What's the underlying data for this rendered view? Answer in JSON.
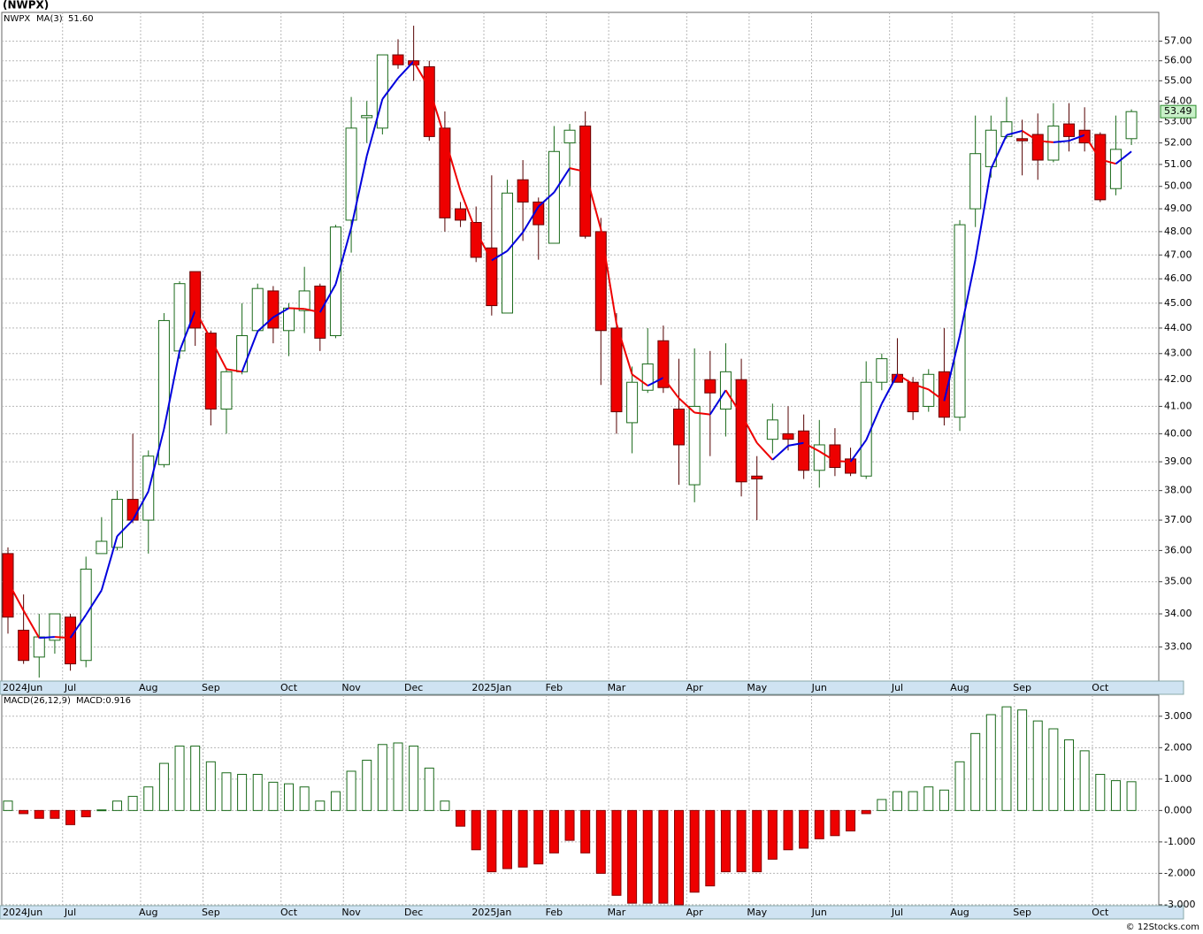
{
  "chart_data": [
    {
      "type": "candlestick",
      "title": "(NWPX)",
      "symbol": "NWPX",
      "symbol_color": "#1a7a1a",
      "categories": [
        "2024Jun",
        null,
        null,
        null,
        "Jul",
        null,
        null,
        null,
        null,
        "Aug",
        null,
        null,
        null,
        "Sep",
        null,
        null,
        null,
        null,
        "Oct",
        null,
        null,
        null,
        "Nov",
        null,
        null,
        null,
        "Dec",
        null,
        null,
        null,
        null,
        "2025Jan",
        null,
        null,
        null,
        "Feb",
        null,
        null,
        null,
        "Mar",
        null,
        null,
        null,
        null,
        "Apr",
        null,
        null,
        null,
        "May",
        null,
        null,
        null,
        "Jun",
        null,
        null,
        null,
        null,
        "Jul",
        null,
        null,
        null,
        "Aug",
        null,
        null,
        null,
        "Sep",
        null,
        null,
        null,
        null,
        "Oct",
        null,
        null
      ],
      "open": [
        35.9,
        33.5,
        32.7,
        33.2,
        33.9,
        32.6,
        35.9,
        36.1,
        37.7,
        37.0,
        38.9,
        43.1,
        46.3,
        43.8,
        40.9,
        42.3,
        43.9,
        45.5,
        43.9,
        44.7,
        45.7,
        43.7,
        48.5,
        53.2,
        52.7,
        56.3,
        56.0,
        55.7,
        52.7,
        49.0,
        48.4,
        47.3,
        44.6,
        50.3,
        49.3,
        47.5,
        52.0,
        52.8,
        48.0,
        44.0,
        40.4,
        41.6,
        43.5,
        40.9,
        38.2,
        42.0,
        40.9,
        42.0,
        38.5,
        39.8,
        40.0,
        40.1,
        38.7,
        39.6,
        39.1,
        38.5,
        41.9,
        42.2,
        41.9,
        41.0,
        42.3,
        40.6,
        49.0,
        50.9,
        52.3,
        52.2,
        52.4,
        51.2,
        52.9,
        52.6,
        52.4,
        49.9,
        52.2
      ],
      "high": [
        36.1,
        34.6,
        34.0,
        34.0,
        34.0,
        35.8,
        37.1,
        38.0,
        40.0,
        39.4,
        44.6,
        45.9,
        46.3,
        43.9,
        42.4,
        45.0,
        45.8,
        45.7,
        45.0,
        46.5,
        45.8,
        48.3,
        54.2,
        54.0,
        56.3,
        57.1,
        57.8,
        56.0,
        53.5,
        49.3,
        49.1,
        50.5,
        50.3,
        51.2,
        49.5,
        52.8,
        52.9,
        53.5,
        48.6,
        44.6,
        42.5,
        44.0,
        44.1,
        42.8,
        43.2,
        43.1,
        43.4,
        42.8,
        39.2,
        41.1,
        41.0,
        40.7,
        40.5,
        40.2,
        39.5,
        42.7,
        43.0,
        43.6,
        42.1,
        42.4,
        44.0,
        48.5,
        53.3,
        53.3,
        54.2,
        53.1,
        53.4,
        53.9,
        53.9,
        53.7,
        52.5,
        53.3,
        53.6
      ],
      "low": [
        33.4,
        32.5,
        32.1,
        32.8,
        32.3,
        32.4,
        35.9,
        36.0,
        36.9,
        35.9,
        38.8,
        42.8,
        43.3,
        40.3,
        40.0,
        42.2,
        43.8,
        43.4,
        42.9,
        43.8,
        43.1,
        43.6,
        47.1,
        52.0,
        52.4,
        55.6,
        55.0,
        52.1,
        48.0,
        48.2,
        46.7,
        44.5,
        44.6,
        47.6,
        46.8,
        47.5,
        50.0,
        47.7,
        41.8,
        40.0,
        39.3,
        41.5,
        41.5,
        38.2,
        37.6,
        39.2,
        39.9,
        37.8,
        37.0,
        39.3,
        39.4,
        38.4,
        38.1,
        38.5,
        38.5,
        38.4,
        41.6,
        41.9,
        40.5,
        40.8,
        40.3,
        40.1,
        48.2,
        50.4,
        52.2,
        50.5,
        50.3,
        51.1,
        51.6,
        51.6,
        49.3,
        49.6,
        51.9
      ],
      "close": [
        33.9,
        32.6,
        33.3,
        34.0,
        32.5,
        35.4,
        36.3,
        37.7,
        37.0,
        39.2,
        44.3,
        45.8,
        44.0,
        40.9,
        42.3,
        43.7,
        45.6,
        44.0,
        44.8,
        45.5,
        43.6,
        48.2,
        52.7,
        53.3,
        56.3,
        55.8,
        55.8,
        52.3,
        48.6,
        48.5,
        46.9,
        44.9,
        49.7,
        49.3,
        48.3,
        51.6,
        52.6,
        47.8,
        43.9,
        40.8,
        41.9,
        42.6,
        41.7,
        39.6,
        41.0,
        41.5,
        42.3,
        38.3,
        38.4,
        40.5,
        39.8,
        38.7,
        39.6,
        38.8,
        38.6,
        41.9,
        42.8,
        41.9,
        40.8,
        42.2,
        40.6,
        48.3,
        51.5,
        52.6,
        53.0,
        52.1,
        51.2,
        52.8,
        52.3,
        52.0,
        49.4,
        51.7,
        53.49
      ],
      "last_close_label": "53.49",
      "up_color": "#1a6a1a",
      "down_color": "#ee0000",
      "ma": {
        "name": "MA(3)",
        "up_color": "#0000dd",
        "down_color": "#ee0000",
        "last_value_label": "51.60",
        "values": [
          35.0,
          34.1,
          33.27,
          33.3,
          33.27,
          33.97,
          34.73,
          36.47,
          37.0,
          37.97,
          40.17,
          43.1,
          44.7,
          43.57,
          42.4,
          42.3,
          43.87,
          44.43,
          44.8,
          44.77,
          44.63,
          45.77,
          48.17,
          51.4,
          54.1,
          55.13,
          55.97,
          54.63,
          52.23,
          49.8,
          48.0,
          46.77,
          47.17,
          47.97,
          49.1,
          49.73,
          50.83,
          50.67,
          48.1,
          44.17,
          42.2,
          41.77,
          42.07,
          41.3,
          40.77,
          40.7,
          41.6,
          40.7,
          39.67,
          39.07,
          39.57,
          39.67,
          39.37,
          39.03,
          39.0,
          39.77,
          41.1,
          42.2,
          41.83,
          41.63,
          41.2,
          43.7,
          46.8,
          50.8,
          52.37,
          52.57,
          52.1,
          52.03,
          52.1,
          52.37,
          51.23,
          51.03,
          51.6
        ]
      },
      "log_scale": true,
      "grid": true,
      "ylim": [
        32,
        58.5
      ],
      "yticks": [
        {
          "value": 33,
          "label": "33.00"
        },
        {
          "value": 34,
          "label": "34.00"
        },
        {
          "value": 35,
          "label": "35.00"
        },
        {
          "value": 36,
          "label": "36.00"
        },
        {
          "value": 37,
          "label": "37.00"
        },
        {
          "value": 38,
          "label": "38.00"
        },
        {
          "value": 39,
          "label": "39.00"
        },
        {
          "value": 40,
          "label": "40.00"
        },
        {
          "value": 41,
          "label": "41.00"
        },
        {
          "value": 42,
          "label": "42.00"
        },
        {
          "value": 43,
          "label": "43.00"
        },
        {
          "value": 44,
          "label": "44.00"
        },
        {
          "value": 45,
          "label": "45.00"
        },
        {
          "value": 46,
          "label": "46.00"
        },
        {
          "value": 47,
          "label": "47.00"
        },
        {
          "value": 48,
          "label": "48.00"
        },
        {
          "value": 49,
          "label": "49.00"
        },
        {
          "value": 50,
          "label": "50.00"
        },
        {
          "value": 51,
          "label": "51.00"
        },
        {
          "value": 52,
          "label": "52.00"
        },
        {
          "value": 53,
          "label": "53.00"
        },
        {
          "value": 54,
          "label": "54.00"
        },
        {
          "value": 55,
          "label": "55.00"
        },
        {
          "value": 56,
          "label": "56.00"
        },
        {
          "value": 57,
          "label": "57.00"
        }
      ]
    },
    {
      "type": "bar",
      "title": "MACD(26,12,9)",
      "value_label": "MACD:0.916",
      "categories": [
        "2024Jun",
        null,
        null,
        null,
        "Jul",
        null,
        null,
        null,
        null,
        "Aug",
        null,
        null,
        null,
        "Sep",
        null,
        null,
        null,
        null,
        "Oct",
        null,
        null,
        null,
        "Nov",
        null,
        null,
        null,
        "Dec",
        null,
        null,
        null,
        null,
        "2025Jan",
        null,
        null,
        null,
        "Feb",
        null,
        null,
        null,
        "Mar",
        null,
        null,
        null,
        null,
        "Apr",
        null,
        null,
        null,
        "May",
        null,
        null,
        null,
        "Jun",
        null,
        null,
        null,
        null,
        "Jul",
        null,
        null,
        null,
        "Aug",
        null,
        null,
        null,
        "Sep",
        null,
        null,
        null,
        null,
        "Oct",
        null,
        null
      ],
      "values": [
        0.3,
        -0.1,
        -0.25,
        -0.25,
        -0.45,
        -0.2,
        0.02,
        0.3,
        0.45,
        0.75,
        1.5,
        2.05,
        2.05,
        1.55,
        1.2,
        1.15,
        1.15,
        0.9,
        0.85,
        0.75,
        0.3,
        0.6,
        1.25,
        1.6,
        2.1,
        2.15,
        2.05,
        1.35,
        0.3,
        -0.5,
        -1.25,
        -1.95,
        -1.85,
        -1.8,
        -1.7,
        -1.35,
        -0.95,
        -1.35,
        -2.0,
        -2.7,
        -2.95,
        -2.95,
        -2.95,
        -3.0,
        -2.6,
        -2.4,
        -1.95,
        -1.95,
        -1.95,
        -1.55,
        -1.25,
        -1.2,
        -0.9,
        -0.8,
        -0.65,
        -0.1,
        0.35,
        0.6,
        0.6,
        0.75,
        0.65,
        1.55,
        2.45,
        3.05,
        3.3,
        3.2,
        2.85,
        2.6,
        2.25,
        1.9,
        1.15,
        0.95,
        0.916
      ],
      "up_color": "#1a6a1a",
      "down_color": "#ee0000",
      "grid": true,
      "ylim": [
        -3.03,
        3.67
      ],
      "yticks": [
        {
          "value": 3,
          "label": "3.000"
        },
        {
          "value": 2,
          "label": "2.000"
        },
        {
          "value": 1,
          "label": "1.000"
        },
        {
          "value": 0,
          "label": "0.000"
        },
        {
          "value": -1,
          "label": "-1.000"
        },
        {
          "value": -2,
          "label": "-2.000"
        },
        {
          "value": -3,
          "label": "-3.000"
        }
      ]
    }
  ],
  "watermark": "© 12Stocks.com"
}
